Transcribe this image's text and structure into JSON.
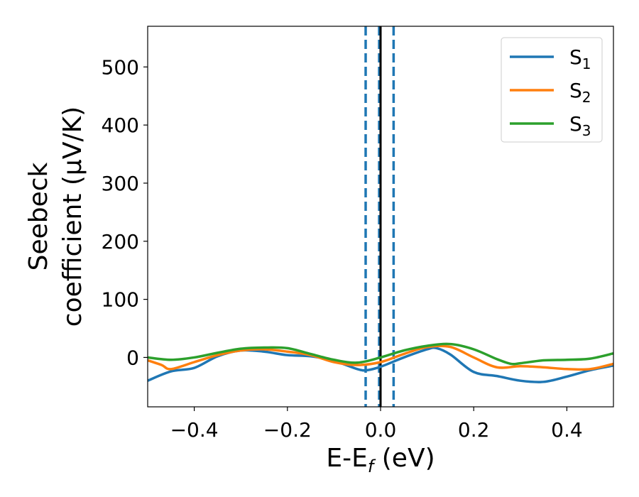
{
  "chart_data": {
    "type": "line",
    "xlabel": {
      "main": "E-E",
      "sub": "f",
      "suffix": " (eV)"
    },
    "ylabel": {
      "line1": "Seebeck",
      "line2": "coefficient  (μV/K)"
    },
    "xlim": [
      -0.5,
      0.5
    ],
    "ylim": [
      -85,
      570
    ],
    "xticks": [
      -0.4,
      -0.2,
      0.0,
      0.2,
      0.4
    ],
    "xtick_labels": [
      "−0.4",
      "−0.2",
      "0.0",
      "0.2",
      "0.4"
    ],
    "yticks": [
      0,
      100,
      200,
      300,
      400,
      500
    ],
    "ytick_labels": [
      "0",
      "100",
      "200",
      "300",
      "400",
      "500"
    ],
    "grid": false,
    "legend_position": "top-right",
    "vlines": [
      {
        "x": -0.032,
        "style": "dashed",
        "color": "#1f77b4"
      },
      {
        "x": 0.0,
        "style": "solid",
        "color": "#000000"
      },
      {
        "x": -0.003,
        "style": "dashed",
        "color": "#1f77b4"
      },
      {
        "x": 0.028,
        "style": "dashed",
        "color": "#1f77b4"
      }
    ],
    "series": [
      {
        "name": "S",
        "sub": "1",
        "color": "#1f77b4",
        "x": [
          -0.5,
          -0.45,
          -0.4,
          -0.35,
          -0.3,
          -0.25,
          -0.2,
          -0.15,
          -0.1,
          -0.05,
          -0.03,
          0.0,
          0.05,
          0.1,
          0.12,
          0.15,
          0.2,
          0.25,
          0.3,
          0.35,
          0.4,
          0.45,
          0.5
        ],
        "y": [
          -40,
          -24,
          -18,
          2,
          12,
          10,
          4,
          2,
          -6,
          -20,
          -22,
          -16,
          0,
          14,
          16,
          5,
          -25,
          -32,
          -40,
          -42,
          -33,
          -22,
          -14
        ]
      },
      {
        "name": "S",
        "sub": "2",
        "color": "#ff7f0e",
        "x": [
          -0.5,
          -0.47,
          -0.45,
          -0.4,
          -0.35,
          -0.3,
          -0.25,
          -0.2,
          -0.15,
          -0.1,
          -0.05,
          0.0,
          0.05,
          0.1,
          0.15,
          0.2,
          0.25,
          0.3,
          0.35,
          0.4,
          0.45,
          0.5
        ],
        "y": [
          -5,
          -13,
          -20,
          -8,
          4,
          12,
          14,
          10,
          4,
          -8,
          -13,
          -8,
          6,
          18,
          18,
          0,
          -17,
          -15,
          -17,
          -20,
          -20,
          -11
        ]
      },
      {
        "name": "S",
        "sub": "3",
        "color": "#2ca02c",
        "x": [
          -0.5,
          -0.45,
          -0.4,
          -0.35,
          -0.3,
          -0.25,
          -0.2,
          -0.15,
          -0.1,
          -0.05,
          0.0,
          0.05,
          0.1,
          0.15,
          0.2,
          0.25,
          0.28,
          0.3,
          0.35,
          0.4,
          0.45,
          0.5
        ],
        "y": [
          0,
          -4,
          0,
          8,
          15,
          17,
          16,
          6,
          -4,
          -9,
          0,
          12,
          20,
          23,
          14,
          -3,
          -11,
          -10,
          -5,
          -4,
          -2,
          7
        ]
      }
    ]
  }
}
